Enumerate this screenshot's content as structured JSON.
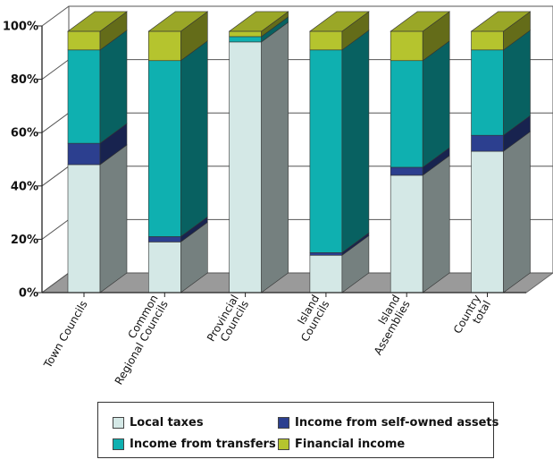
{
  "chart_data": {
    "type": "bar",
    "stacked": true,
    "three_d": true,
    "categories": [
      [
        "Town Councils"
      ],
      [
        "Common",
        "Regional Councils"
      ],
      [
        "Provincial",
        "Councils"
      ],
      [
        "Island",
        "Councils"
      ],
      [
        "Island",
        "Assemblies"
      ],
      [
        "Country",
        "total"
      ]
    ],
    "series": [
      {
        "name": "Local taxes",
        "color": "#d4e8e6",
        "values": [
          48,
          19,
          94,
          14,
          44,
          53
        ]
      },
      {
        "name": "Income from self-owned assets",
        "color": "#2c3f8f",
        "values": [
          8,
          2,
          0,
          1,
          3,
          6
        ]
      },
      {
        "name": "Income from transfers",
        "color": "#0fb0b0",
        "values": [
          35,
          66,
          2,
          76,
          40,
          32
        ]
      },
      {
        "name": "Financial income",
        "color": "#b5c42e",
        "values": [
          7,
          11,
          2,
          7,
          11,
          7
        ]
      }
    ],
    "y_ticks": [
      "0%",
      "20%",
      "40%",
      "60%",
      "80%",
      "100%"
    ],
    "ylim": [
      0,
      100
    ],
    "grid": true,
    "legend": {
      "placement": "bottom",
      "order": [
        0,
        1,
        2,
        3
      ]
    }
  }
}
